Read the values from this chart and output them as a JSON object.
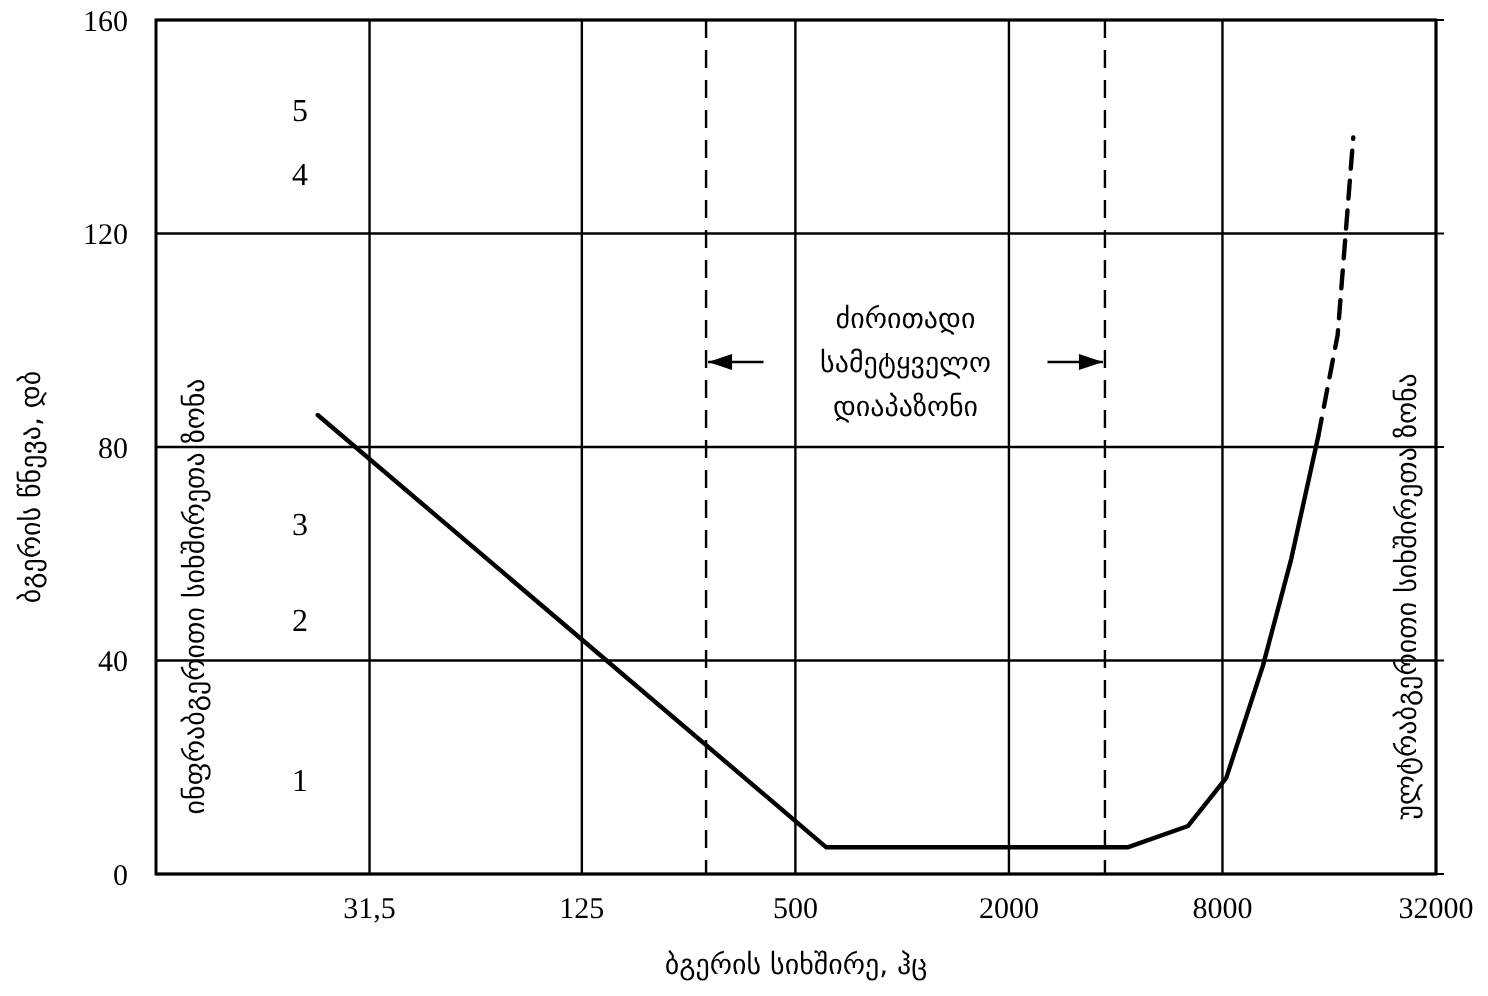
{
  "chart_data": {
    "type": "line",
    "xlabel": "ბგერის სიხშირე, ჰც",
    "ylabel": "ბგერის წნევა, დბ",
    "log": "x",
    "grid": true,
    "marker": "none",
    "xlim": [
      7.875,
      32000
    ],
    "xticks": [
      {
        "value": 31.5,
        "label": "31,5"
      },
      125,
      500,
      2000,
      8000,
      32000
    ],
    "ylim": [
      0,
      160
    ],
    "yticks": [
      0,
      40,
      80,
      120,
      160
    ],
    "series": [
      {
        "color": "#000000",
        "line_style": "solid",
        "x": [
          22.5,
          611,
          4320,
          6400,
          8200,
          10400,
          12500,
          14900
        ],
        "values": [
          86,
          5,
          5,
          9,
          18,
          39,
          59,
          82
        ]
      },
      {
        "color": "#000000",
        "line_style": "dashed",
        "x": [
          14900,
          16900,
          18700
        ],
        "values": [
          82,
          101,
          138
        ]
      }
    ],
    "ref_lines": [
      {
        "axis": "x",
        "value": 280,
        "line_style": "dashed",
        "color": "#000000"
      },
      {
        "axis": "x",
        "value": 3730,
        "line_style": "dashed",
        "color": "#000000"
      }
    ],
    "annotations": [
      "ინფრაბგერითი სიხშირეთა ზონა",
      "ულტრაბგერითი სიხშირეთა ზონა",
      "ძირითადი სამეტყველო დიაპაზონი",
      "1",
      "2",
      "3",
      "4",
      "5"
    ]
  }
}
